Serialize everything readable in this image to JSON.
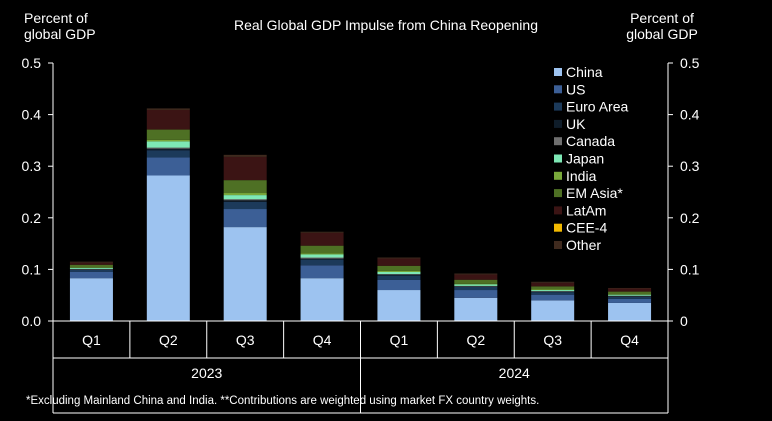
{
  "chart_data": {
    "type": "bar",
    "stacked": true,
    "title": "Real Global GDP Impulse from China Reopening",
    "ylabel_left": [
      "Percent of",
      "global GDP"
    ],
    "ylabel_right": [
      "Percent of",
      "global GDP"
    ],
    "ylim": [
      0,
      0.5
    ],
    "yticks_left": [
      "0.0",
      "0.1",
      "0.2",
      "0.3",
      "0.4",
      "0.5"
    ],
    "yticks_right": [
      "0",
      "0.1",
      "0.2",
      "0.3",
      "0.4",
      "0.5"
    ],
    "categories": [
      "Q1",
      "Q2",
      "Q3",
      "Q4",
      "Q1",
      "Q2",
      "Q3",
      "Q4"
    ],
    "year_groups": [
      {
        "label": "2023",
        "start": 0,
        "end": 3
      },
      {
        "label": "2024",
        "start": 4,
        "end": 7
      }
    ],
    "series": [
      {
        "name": "China",
        "color": "#9dc3f0",
        "values": [
          0.083,
          0.282,
          0.182,
          0.083,
          0.06,
          0.045,
          0.04,
          0.035
        ]
      },
      {
        "name": "US",
        "color": "#3c5f96",
        "values": [
          0.012,
          0.035,
          0.035,
          0.025,
          0.02,
          0.015,
          0.011,
          0.008
        ]
      },
      {
        "name": "Euro Area",
        "color": "#1c3a5a",
        "values": [
          0.004,
          0.014,
          0.014,
          0.011,
          0.008,
          0.006,
          0.005,
          0.004
        ]
      },
      {
        "name": "UK",
        "color": "#0f1d2a",
        "values": [
          0.001,
          0.003,
          0.003,
          0.002,
          0.002,
          0.001,
          0.001,
          0.001
        ]
      },
      {
        "name": "Canada",
        "color": "#6f6f6f",
        "values": [
          0.001,
          0.002,
          0.002,
          0.002,
          0.001,
          0.001,
          0.001,
          0.001
        ]
      },
      {
        "name": "Japan",
        "color": "#7ee8b5",
        "values": [
          0.002,
          0.012,
          0.008,
          0.006,
          0.004,
          0.003,
          0.002,
          0.002
        ]
      },
      {
        "name": "India",
        "color": "#79a83a",
        "values": [
          0.001,
          0.003,
          0.004,
          0.002,
          0.002,
          0.001,
          0.001,
          0.001
        ]
      },
      {
        "name": "EM Asia*",
        "color": "#4e7024",
        "values": [
          0.005,
          0.02,
          0.025,
          0.015,
          0.01,
          0.008,
          0.006,
          0.005
        ]
      },
      {
        "name": "LatAm",
        "color": "#3b1414",
        "values": [
          0.004,
          0.038,
          0.045,
          0.025,
          0.014,
          0.01,
          0.007,
          0.006
        ]
      },
      {
        "name": "CEE-4",
        "color": "#f2b900",
        "values": [
          0.0,
          0.0,
          0.0,
          0.0,
          0.0,
          0.0,
          0.0,
          0.0
        ]
      },
      {
        "name": "Other",
        "color": "#3f2a1e",
        "values": [
          0.002,
          0.003,
          0.004,
          0.002,
          0.002,
          0.002,
          0.002,
          0.001
        ]
      }
    ],
    "footnote": "*Excluding Mainland China and India. **Contributions are weighted using market FX country weights."
  }
}
